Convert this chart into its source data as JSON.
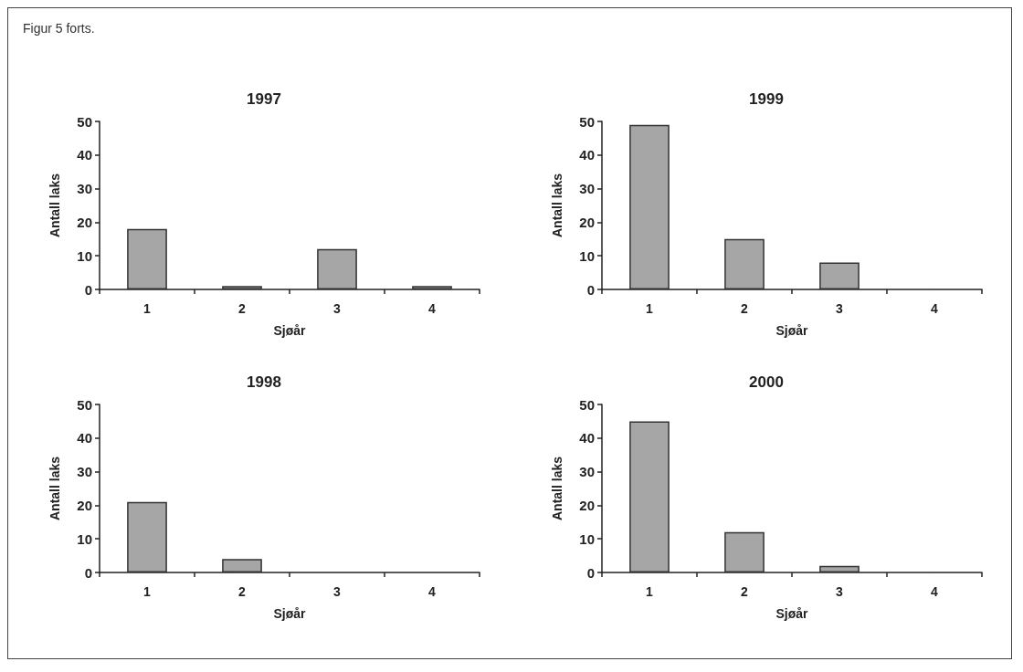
{
  "chart_data": [
    {
      "type": "bar",
      "title": "1997",
      "xlabel": "Sjøår",
      "ylabel": "Antall laks",
      "categories": [
        "1",
        "2",
        "3",
        "4"
      ],
      "values": [
        18,
        1,
        12,
        1
      ],
      "color": "#a6a6a6",
      "ylim": [
        0,
        50
      ],
      "yticks": [
        0,
        10,
        20,
        30,
        40,
        50
      ],
      "grid": false,
      "annotations": [
        "Figur 5 forts."
      ]
    },
    {
      "type": "bar",
      "title": "1999",
      "xlabel": "Sjøår",
      "ylabel": "Antall laks",
      "categories": [
        "1",
        "2",
        "3",
        "4"
      ],
      "values": [
        49,
        15,
        8,
        0
      ],
      "color": "#a6a6a6",
      "ylim": [
        0,
        50
      ],
      "yticks": [
        0,
        10,
        20,
        30,
        40,
        50
      ],
      "grid": false
    },
    {
      "type": "bar",
      "title": "1998",
      "xlabel": "Sjøår",
      "ylabel": "Antall laks",
      "categories": [
        "1",
        "2",
        "3",
        "4"
      ],
      "values": [
        21,
        4,
        0,
        0
      ],
      "color": "#a6a6a6",
      "ylim": [
        0,
        50
      ],
      "yticks": [
        0,
        10,
        20,
        30,
        40,
        50
      ],
      "grid": false
    },
    {
      "type": "bar",
      "title": "2000",
      "xlabel": "Sjøår",
      "ylabel": "Antall laks",
      "categories": [
        "1",
        "2",
        "3",
        "4"
      ],
      "values": [
        45,
        12,
        2,
        0
      ],
      "color": "#a6a6a6",
      "ylim": [
        0,
        50
      ],
      "yticks": [
        0,
        10,
        20,
        30,
        40,
        50
      ],
      "grid": false
    }
  ]
}
